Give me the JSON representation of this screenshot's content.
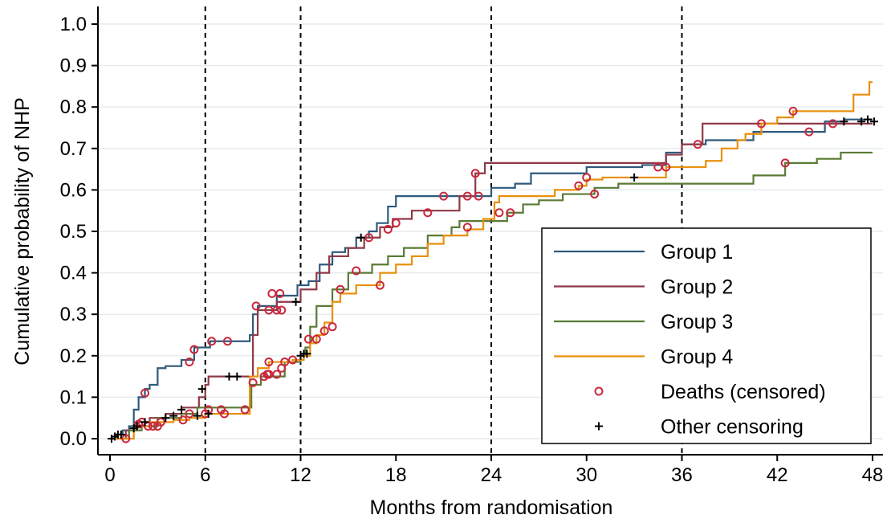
{
  "chart_data": {
    "type": "line",
    "subtype": "kaplan-meier-step",
    "title": "",
    "xlabel": "Months from randomisation",
    "ylabel": "Cumulative probability of NHP",
    "xlim": [
      0,
      48
    ],
    "ylim": [
      0,
      1
    ],
    "x_ticks": [
      0,
      6,
      12,
      18,
      24,
      30,
      36,
      42,
      48
    ],
    "x_tick_labels": [
      "0",
      "6",
      "12",
      "18",
      "24",
      "30",
      "36",
      "42",
      "48"
    ],
    "y_ticks": [
      0,
      0.1,
      0.2,
      0.3,
      0.4,
      0.5,
      0.6,
      0.7,
      0.8,
      0.9,
      1.0
    ],
    "y_tick_labels": [
      "0.0",
      "0.1",
      "0.2",
      "0.3",
      "0.4",
      "0.5",
      "0.6",
      "0.7",
      "0.8",
      "0.9",
      "1.0"
    ],
    "vertical_reference_lines": [
      6,
      12,
      24,
      36
    ],
    "grid": "horizontal",
    "legend_position": "bottom-right",
    "series": [
      {
        "name": "Group 1",
        "color": "#2e5a7d",
        "steps": [
          [
            0,
            0
          ],
          [
            0.4,
            0.01
          ],
          [
            0.8,
            0.02
          ],
          [
            1.2,
            0.03
          ],
          [
            1.5,
            0.07
          ],
          [
            1.8,
            0.1
          ],
          [
            2.2,
            0.12
          ],
          [
            2.5,
            0.13
          ],
          [
            3.0,
            0.17
          ],
          [
            3.5,
            0.175
          ],
          [
            4.5,
            0.19
          ],
          [
            5.3,
            0.22
          ],
          [
            6.3,
            0.235
          ],
          [
            8.8,
            0.25
          ],
          [
            9.0,
            0.3
          ],
          [
            9.3,
            0.32
          ],
          [
            10.5,
            0.345
          ],
          [
            11.8,
            0.37
          ],
          [
            12.5,
            0.38
          ],
          [
            13.2,
            0.42
          ],
          [
            14.0,
            0.45
          ],
          [
            14.8,
            0.46
          ],
          [
            15.5,
            0.485
          ],
          [
            16.3,
            0.5
          ],
          [
            16.8,
            0.52
          ],
          [
            17.5,
            0.56
          ],
          [
            18.0,
            0.585
          ],
          [
            22.0,
            0.585
          ],
          [
            23.0,
            0.585
          ],
          [
            24.0,
            0.605
          ],
          [
            25.5,
            0.615
          ],
          [
            26.5,
            0.64
          ],
          [
            30.0,
            0.655
          ],
          [
            33.5,
            0.66
          ],
          [
            35.0,
            0.69
          ],
          [
            36.0,
            0.71
          ],
          [
            37.5,
            0.72
          ],
          [
            40.5,
            0.74
          ],
          [
            45.0,
            0.765
          ],
          [
            46.2,
            0.77
          ],
          [
            48,
            0.77
          ]
        ],
        "deaths": [],
        "other_censoring": [
          [
            0.3,
            0.005
          ],
          [
            0.6,
            0.01
          ],
          [
            1.6,
            0.07
          ],
          [
            2.0,
            0.1
          ],
          [
            2.6,
            0.13
          ],
          [
            3.3,
            0.17
          ],
          [
            3.6,
            0.175
          ],
          [
            7.2,
            0.15
          ],
          [
            47.8,
            0.77
          ]
        ]
      },
      {
        "name": "Group 2",
        "color": "#8e3a48",
        "steps": [
          [
            0,
            0
          ],
          [
            1.0,
            0.02
          ],
          [
            1.7,
            0.04
          ],
          [
            2.5,
            0.05
          ],
          [
            3.5,
            0.06
          ],
          [
            4.5,
            0.075
          ],
          [
            5.6,
            0.1
          ],
          [
            6.0,
            0.13
          ],
          [
            6.2,
            0.15
          ],
          [
            8.8,
            0.15
          ],
          [
            9.0,
            0.25
          ],
          [
            9.3,
            0.31
          ],
          [
            10.5,
            0.33
          ],
          [
            11.0,
            0.33
          ],
          [
            12.0,
            0.36
          ],
          [
            13.0,
            0.4
          ],
          [
            13.8,
            0.44
          ],
          [
            15.0,
            0.46
          ],
          [
            16.0,
            0.485
          ],
          [
            17.0,
            0.51
          ],
          [
            17.8,
            0.53
          ],
          [
            19.0,
            0.55
          ],
          [
            22.0,
            0.585
          ],
          [
            23.0,
            0.64
          ],
          [
            23.6,
            0.665
          ],
          [
            24.3,
            0.665
          ],
          [
            35.0,
            0.685
          ],
          [
            36.0,
            0.71
          ],
          [
            37.3,
            0.76
          ],
          [
            41.5,
            0.76
          ],
          [
            48,
            0.76
          ]
        ],
        "deaths": [],
        "other_censoring": []
      },
      {
        "name": "Group 3",
        "color": "#5a7a35",
        "steps": [
          [
            0,
            0
          ],
          [
            1.2,
            0.02
          ],
          [
            2.0,
            0.03
          ],
          [
            3.0,
            0.05
          ],
          [
            4.5,
            0.06
          ],
          [
            5.5,
            0.075
          ],
          [
            8.6,
            0.075
          ],
          [
            8.9,
            0.13
          ],
          [
            9.5,
            0.15
          ],
          [
            11.0,
            0.185
          ],
          [
            12.0,
            0.2
          ],
          [
            12.3,
            0.22
          ],
          [
            12.6,
            0.27
          ],
          [
            13.0,
            0.32
          ],
          [
            14.0,
            0.36
          ],
          [
            15.0,
            0.4
          ],
          [
            16.5,
            0.42
          ],
          [
            17.5,
            0.44
          ],
          [
            18.5,
            0.46
          ],
          [
            20.0,
            0.49
          ],
          [
            21.5,
            0.51
          ],
          [
            22.0,
            0.525
          ],
          [
            24.0,
            0.525
          ],
          [
            25.0,
            0.545
          ],
          [
            26.0,
            0.565
          ],
          [
            27.0,
            0.575
          ],
          [
            28.5,
            0.59
          ],
          [
            30.0,
            0.59
          ],
          [
            30.5,
            0.605
          ],
          [
            32.0,
            0.615
          ],
          [
            40.5,
            0.635
          ],
          [
            42.5,
            0.665
          ],
          [
            44.5,
            0.675
          ],
          [
            46.0,
            0.69
          ],
          [
            48,
            0.69
          ]
        ],
        "deaths": [],
        "other_censoring": [
          [
            47.4,
            0.69
          ],
          [
            47.7,
            0.69
          ],
          [
            48.0,
            0.69
          ]
        ]
      },
      {
        "name": "Group 4",
        "color": "#e8900e",
        "steps": [
          [
            0,
            0
          ],
          [
            1.5,
            0.03
          ],
          [
            2.5,
            0.04
          ],
          [
            4.0,
            0.045
          ],
          [
            5.0,
            0.05
          ],
          [
            6.0,
            0.06
          ],
          [
            8.5,
            0.06
          ],
          [
            8.8,
            0.15
          ],
          [
            9.3,
            0.17
          ],
          [
            10.0,
            0.185
          ],
          [
            11.5,
            0.19
          ],
          [
            12.2,
            0.2
          ],
          [
            12.6,
            0.23
          ],
          [
            13.0,
            0.25
          ],
          [
            13.5,
            0.28
          ],
          [
            14.0,
            0.33
          ],
          [
            14.5,
            0.35
          ],
          [
            15.5,
            0.37
          ],
          [
            17.0,
            0.4
          ],
          [
            18.0,
            0.42
          ],
          [
            19.0,
            0.44
          ],
          [
            20.0,
            0.47
          ],
          [
            21.0,
            0.49
          ],
          [
            22.5,
            0.505
          ],
          [
            23.5,
            0.53
          ],
          [
            24.2,
            0.57
          ],
          [
            24.5,
            0.585
          ],
          [
            28.0,
            0.6
          ],
          [
            29.5,
            0.61
          ],
          [
            30.0,
            0.625
          ],
          [
            31.0,
            0.63
          ],
          [
            33.5,
            0.63
          ],
          [
            35.0,
            0.655
          ],
          [
            36.0,
            0.655
          ],
          [
            37.5,
            0.67
          ],
          [
            38.5,
            0.7
          ],
          [
            39.5,
            0.72
          ],
          [
            40.0,
            0.735
          ],
          [
            41.0,
            0.76
          ],
          [
            42.0,
            0.775
          ],
          [
            43.0,
            0.79
          ],
          [
            46.0,
            0.79
          ],
          [
            46.8,
            0.83
          ],
          [
            47.8,
            0.86
          ],
          [
            48,
            0.86
          ]
        ],
        "deaths": [],
        "other_censoring": [
          [
            47.9,
            0.86
          ],
          [
            48.0,
            0.805
          ]
        ]
      }
    ],
    "markers": {
      "deaths_censored": {
        "label": "Deaths (censored)",
        "color": "#c8283c",
        "points": [
          [
            1.0,
            0.0
          ],
          [
            1.8,
            0.035
          ],
          [
            2.0,
            0.04
          ],
          [
            2.4,
            0.03
          ],
          [
            2.7,
            0.03
          ],
          [
            3.0,
            0.03
          ],
          [
            3.2,
            0.04
          ],
          [
            2.2,
            0.11
          ],
          [
            5.0,
            0.185
          ],
          [
            5.3,
            0.215
          ],
          [
            4.6,
            0.045
          ],
          [
            5.0,
            0.06
          ],
          [
            6.0,
            0.06
          ],
          [
            6.2,
            0.07
          ],
          [
            6.4,
            0.235
          ],
          [
            7.4,
            0.235
          ],
          [
            7.0,
            0.07
          ],
          [
            7.2,
            0.06
          ],
          [
            8.5,
            0.07
          ],
          [
            9.0,
            0.135
          ],
          [
            9.2,
            0.32
          ],
          [
            9.7,
            0.15
          ],
          [
            10.0,
            0.155
          ],
          [
            10.0,
            0.31
          ],
          [
            10.2,
            0.35
          ],
          [
            10.5,
            0.31
          ],
          [
            10.8,
            0.31
          ],
          [
            10.5,
            0.155
          ],
          [
            10.8,
            0.17
          ],
          [
            11.0,
            0.185
          ],
          [
            10.0,
            0.185
          ],
          [
            9.9,
            0.155
          ],
          [
            10.7,
            0.35
          ],
          [
            11.5,
            0.19
          ],
          [
            12.5,
            0.24
          ],
          [
            13.0,
            0.24
          ],
          [
            13.5,
            0.26
          ],
          [
            14.0,
            0.27
          ],
          [
            14.5,
            0.36
          ],
          [
            15.5,
            0.405
          ],
          [
            16.3,
            0.485
          ],
          [
            17.0,
            0.37
          ],
          [
            18.0,
            0.52
          ],
          [
            17.5,
            0.505
          ],
          [
            20.0,
            0.545
          ],
          [
            21.0,
            0.585
          ],
          [
            22.5,
            0.51
          ],
          [
            22.5,
            0.585
          ],
          [
            23.0,
            0.64
          ],
          [
            23.2,
            0.585
          ],
          [
            24.5,
            0.545
          ],
          [
            25.2,
            0.545
          ],
          [
            29.5,
            0.61
          ],
          [
            30.0,
            0.63
          ],
          [
            30.5,
            0.59
          ],
          [
            34.5,
            0.655
          ],
          [
            35.0,
            0.655
          ],
          [
            37.0,
            0.71
          ],
          [
            41.0,
            0.76
          ],
          [
            42.5,
            0.665
          ],
          [
            43.0,
            0.79
          ],
          [
            44.0,
            0.74
          ],
          [
            45.5,
            0.76
          ]
        ]
      },
      "other_censoring": {
        "label": "Other censoring",
        "color": "#000000",
        "points": [
          [
            0.1,
            0.0
          ],
          [
            0.3,
            0.005
          ],
          [
            0.5,
            0.01
          ],
          [
            0.7,
            0.01
          ],
          [
            1.5,
            0.025
          ],
          [
            1.7,
            0.03
          ],
          [
            2.2,
            0.04
          ],
          [
            3.5,
            0.05
          ],
          [
            4.0,
            0.055
          ],
          [
            4.5,
            0.07
          ],
          [
            5.5,
            0.055
          ],
          [
            5.8,
            0.12
          ],
          [
            6.2,
            0.06
          ],
          [
            7.5,
            0.15
          ],
          [
            8.0,
            0.15
          ],
          [
            11.7,
            0.33
          ],
          [
            12.0,
            0.2
          ],
          [
            12.2,
            0.205
          ],
          [
            12.4,
            0.205
          ],
          [
            15.8,
            0.485
          ],
          [
            33.0,
            0.63
          ],
          [
            46.2,
            0.765
          ],
          [
            47.3,
            0.765
          ],
          [
            47.7,
            0.77
          ],
          [
            48.1,
            0.765
          ]
        ]
      }
    }
  }
}
